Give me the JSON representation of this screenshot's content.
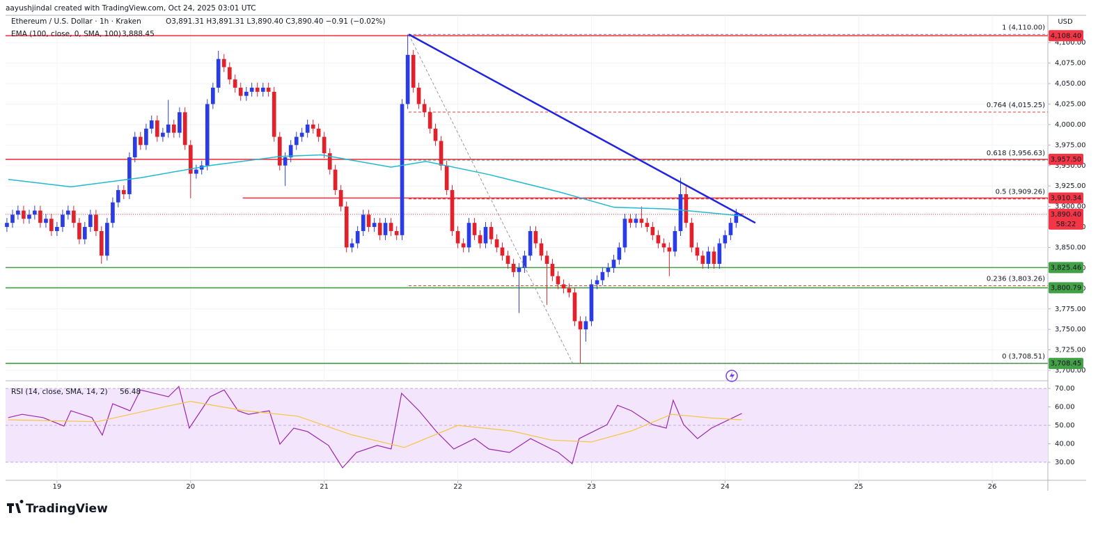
{
  "header": {
    "creator": "aayushjindal created with TradingView.com, Oct 24, 2025 03:01 UTC"
  },
  "footer": {
    "logo": "TradingView"
  },
  "chart_data": [
    {
      "type": "candlestick",
      "title": "Ethereum / U.S. Dollar · 1h · Kraken",
      "ohlc_text": "O3,891.31 H3,891.31 L3,890.40 C3,890.40 −0.91 (−0.02%)",
      "axis_label": "USD",
      "up_color": "#2a3ce6",
      "down_color": "#e3212b",
      "x": [
        18.625,
        18.667,
        18.708,
        18.75,
        18.792,
        18.833,
        18.875,
        18.917,
        18.958,
        19,
        19.042,
        19.083,
        19.125,
        19.167,
        19.208,
        19.25,
        19.292,
        19.333,
        19.375,
        19.417,
        19.458,
        19.5,
        19.542,
        19.583,
        19.625,
        19.667,
        19.708,
        19.75,
        19.792,
        19.833,
        19.875,
        19.917,
        19.958,
        20,
        20.042,
        20.083,
        20.125,
        20.167,
        20.208,
        20.25,
        20.292,
        20.333,
        20.375,
        20.417,
        20.458,
        20.5,
        20.542,
        20.583,
        20.625,
        20.667,
        20.708,
        20.75,
        20.792,
        20.833,
        20.875,
        20.917,
        20.958,
        21,
        21.042,
        21.083,
        21.125,
        21.167,
        21.208,
        21.25,
        21.292,
        21.333,
        21.375,
        21.417,
        21.458,
        21.5,
        21.542,
        21.583,
        21.625,
        21.667,
        21.708,
        21.75,
        21.792,
        21.833,
        21.875,
        21.917,
        21.958,
        22,
        22.042,
        22.083,
        22.125,
        22.167,
        22.208,
        22.25,
        22.292,
        22.333,
        22.375,
        22.417,
        22.458,
        22.5,
        22.542,
        22.583,
        22.625,
        22.667,
        22.708,
        22.75,
        22.792,
        22.833,
        22.875,
        22.917,
        22.958,
        23,
        23.042,
        23.083,
        23.125,
        23.167,
        23.208,
        23.25,
        23.292,
        23.333,
        23.375,
        23.417,
        23.458,
        23.5,
        23.542,
        23.583,
        23.625,
        23.667,
        23.708,
        23.75,
        23.792,
        23.833,
        23.875,
        23.917,
        23.958,
        24,
        24.042,
        24.083,
        24.125
      ],
      "open": [
        3875,
        3880,
        3890,
        3895,
        3885,
        3890,
        3895,
        3880,
        3885,
        3870,
        3875,
        3890,
        3895,
        3880,
        3860,
        3875,
        3890,
        3870,
        3840,
        3880,
        3905,
        3920,
        3915,
        3960,
        3985,
        3975,
        3995,
        4005,
        3985,
        3990,
        4000,
        3990,
        4015,
        3975,
        3940,
        3945,
        3950,
        4025,
        4045,
        4080,
        4070,
        4055,
        4045,
        4035,
        4040,
        4045,
        4040,
        4045,
        4040,
        3985,
        3950,
        3960,
        3975,
        3985,
        3990,
        4000,
        3995,
        3985,
        3965,
        3945,
        3920,
        3900,
        3850,
        3855,
        3870,
        3890,
        3875,
        3880,
        3865,
        3880,
        3870,
        3865,
        4025,
        4085,
        4045,
        4025,
        4015,
        3995,
        3980,
        3950,
        3920,
        3870,
        3855,
        3850,
        3880,
        3865,
        3855,
        3875,
        3860,
        3850,
        3840,
        3830,
        3820,
        3825,
        3840,
        3870,
        3855,
        3840,
        3830,
        3815,
        3805,
        3800,
        3795,
        3760,
        3750,
        3760,
        3805,
        3810,
        3820,
        3825,
        3835,
        3850,
        3885,
        3880,
        3885,
        3880,
        3875,
        3865,
        3855,
        3850,
        3845,
        3870,
        3915,
        3880,
        3850,
        3840,
        3830,
        3845,
        3830,
        3855,
        3865,
        3880,
        3891.31
      ],
      "high": [
        3886,
        3896,
        3901,
        3901,
        3896,
        3901,
        3901,
        3891,
        3891,
        3881,
        3896,
        3901,
        3901,
        3886,
        3881,
        3896,
        3896,
        3876,
        3886,
        3911,
        3926,
        3926,
        3966,
        3991,
        3991,
        4001,
        4011,
        4011,
        3996,
        4030,
        4006,
        4021,
        4021,
        3981,
        3951,
        3956,
        4031,
        4051,
        4090,
        4086,
        4076,
        4061,
        4051,
        4046,
        4051,
        4051,
        4051,
        4051,
        4046,
        3991,
        3966,
        3981,
        3991,
        3996,
        4006,
        4006,
        4001,
        3991,
        3971,
        3951,
        3926,
        3906,
        3861,
        3876,
        3896,
        3896,
        3886,
        3886,
        3886,
        3886,
        3876,
        4031,
        4110,
        4091,
        4051,
        4031,
        4021,
        4001,
        3986,
        3956,
        3926,
        3876,
        3861,
        3886,
        3886,
        3871,
        3881,
        3881,
        3866,
        3856,
        3846,
        3836,
        3831,
        3846,
        3876,
        3876,
        3861,
        3846,
        3836,
        3821,
        3811,
        3806,
        3801,
        3766,
        3766,
        3811,
        3816,
        3826,
        3831,
        3841,
        3856,
        3891,
        3891,
        3891,
        3900,
        3886,
        3881,
        3871,
        3861,
        3856,
        3876,
        3935,
        3925,
        3886,
        3856,
        3846,
        3851,
        3851,
        3861,
        3871,
        3886,
        3897,
        3891.31
      ],
      "low": [
        3869,
        3874,
        3884,
        3879,
        3879,
        3884,
        3874,
        3874,
        3864,
        3864,
        3869,
        3884,
        3874,
        3854,
        3854,
        3869,
        3864,
        3830,
        3834,
        3874,
        3899,
        3909,
        3909,
        3954,
        3969,
        3969,
        3989,
        3979,
        3979,
        3984,
        3984,
        3984,
        3969,
        3910,
        3934,
        3939,
        3944,
        4019,
        4039,
        4064,
        4049,
        4039,
        4029,
        4029,
        4034,
        4034,
        4034,
        4034,
        3979,
        3944,
        3925,
        3954,
        3969,
        3979,
        3984,
        3989,
        3979,
        3959,
        3939,
        3914,
        3894,
        3844,
        3844,
        3849,
        3864,
        3869,
        3869,
        3859,
        3859,
        3864,
        3859,
        3859,
        4019,
        4039,
        4019,
        4009,
        3989,
        3974,
        3944,
        3914,
        3864,
        3849,
        3844,
        3844,
        3859,
        3849,
        3849,
        3854,
        3844,
        3834,
        3824,
        3814,
        3770,
        3819,
        3834,
        3849,
        3834,
        3780,
        3809,
        3799,
        3794,
        3789,
        3754,
        3708.51,
        3735,
        3754,
        3799,
        3804,
        3814,
        3819,
        3829,
        3844,
        3874,
        3874,
        3874,
        3869,
        3859,
        3849,
        3844,
        3815,
        3839,
        3864,
        3874,
        3844,
        3834,
        3824,
        3824,
        3824,
        3824,
        3849,
        3859,
        3874,
        3890.4
      ],
      "close": [
        3880,
        3890,
        3895,
        3885,
        3890,
        3895,
        3880,
        3885,
        3870,
        3875,
        3890,
        3895,
        3880,
        3860,
        3875,
        3890,
        3870,
        3840,
        3880,
        3905,
        3920,
        3915,
        3960,
        3985,
        3975,
        3995,
        4005,
        3985,
        3990,
        4000,
        3990,
        4015,
        3975,
        3940,
        3945,
        3950,
        4025,
        4045,
        4080,
        4070,
        4055,
        4045,
        4035,
        4040,
        4045,
        4040,
        4045,
        4040,
        3985,
        3950,
        3960,
        3975,
        3985,
        3990,
        4000,
        3995,
        3985,
        3965,
        3945,
        3920,
        3900,
        3850,
        3855,
        3870,
        3890,
        3875,
        3880,
        3865,
        3880,
        3870,
        3865,
        4025,
        4085,
        4045,
        4025,
        4015,
        3995,
        3980,
        3950,
        3920,
        3870,
        3855,
        3850,
        3880,
        3865,
        3855,
        3875,
        3860,
        3850,
        3840,
        3830,
        3820,
        3825,
        3840,
        3870,
        3855,
        3840,
        3830,
        3815,
        3805,
        3800,
        3795,
        3760,
        3750,
        3760,
        3805,
        3810,
        3820,
        3825,
        3835,
        3850,
        3885,
        3880,
        3885,
        3880,
        3875,
        3865,
        3855,
        3850,
        3845,
        3870,
        3915,
        3880,
        3850,
        3840,
        3830,
        3845,
        3830,
        3855,
        3865,
        3880,
        3891.31,
        3890.4
      ],
      "last_price": {
        "value": 3890.4,
        "label": "3,890.40",
        "countdown": "58:22",
        "color": "#f23645"
      },
      "ema": {
        "name": "EMA (100, close, 0, SMA, 100)",
        "value_label": "3,888.45",
        "color": "#22b8cf",
        "x": [
          18.635,
          19.104,
          19.625,
          20.146,
          20.668,
          20.98,
          21.501,
          21.762,
          22.231,
          22.752,
          23.169,
          23.586,
          24.125
        ],
        "values": [
          3933,
          3924,
          3935,
          3950,
          3961,
          3963,
          3948,
          3955,
          3939,
          3918,
          3899,
          3897,
          3888.45
        ]
      },
      "levels": [
        {
          "value": 4108.4,
          "label": "4,108.40",
          "color": "#f23645"
        },
        {
          "value": 3957.5,
          "label": "3,957.50",
          "color": "#f23645"
        },
        {
          "value": 3910.34,
          "label": "3,910.34",
          "color": "#f23645",
          "from_x": 20.39
        },
        {
          "value": 3825.46,
          "label": "3,825.46",
          "color": "#43a047"
        },
        {
          "value": 3800.79,
          "label": "3,800.79",
          "color": "#43a047"
        },
        {
          "value": 3708.45,
          "label": "3,708.45",
          "color": "#43a047"
        }
      ],
      "fib_from_x": 21.632,
      "fib_levels": [
        {
          "value": 4110,
          "label": "1 (4,110.00)",
          "color": "#7a86c8"
        },
        {
          "value": 4015.25,
          "label": "0.764 (4,015.25)",
          "color": "#e53935"
        },
        {
          "value": 3956.63,
          "label": "0.618 (3,956.63)",
          "color": "#1e9e86"
        },
        {
          "value": 3909.26,
          "label": "0.5 (3,909.26)",
          "color": "#b71c1c"
        },
        {
          "value": 3803.26,
          "label": "0.236 (3,803.26)",
          "color": "#e53935"
        },
        {
          "value": 3708.51,
          "label": "0 (3,708.51)",
          "color": "#888888"
        }
      ],
      "trendline": {
        "color": "#1f24e0",
        "x": [
          21.632,
          24.227
        ],
        "values": [
          4110,
          3880
        ]
      },
      "fib_diagonal": {
        "color": "#999999",
        "x": [
          21.632,
          22.86
        ],
        "values": [
          4110,
          3708.51
        ]
      },
      "xlim": [
        18.615,
        26.416
      ],
      "xticks": [
        19,
        20,
        21,
        22,
        23,
        24,
        25,
        26
      ],
      "ylim": [
        3689,
        4118
      ],
      "yticks": [
        {
          "value": 3700,
          "label": "3,700.00"
        },
        {
          "value": 3725,
          "label": "3,725.00"
        },
        {
          "value": 3750,
          "label": "3,750.00"
        },
        {
          "value": 3775,
          "label": "3,775.00"
        },
        {
          "value": 3800,
          "label": "3,800.00"
        },
        {
          "value": 3825,
          "label": "3,825.00"
        },
        {
          "value": 3850,
          "label": "3,850.00"
        },
        {
          "value": 3875,
          "label": "3,875.00"
        },
        {
          "value": 3900,
          "label": "3,900.00"
        },
        {
          "value": 3925,
          "label": "3,925.00"
        },
        {
          "value": 3950,
          "label": "3,950.00"
        },
        {
          "value": 3975,
          "label": "3,975.00"
        },
        {
          "value": 4000,
          "label": "4,000.00"
        },
        {
          "value": 4025,
          "label": "4,025.00"
        },
        {
          "value": 4050,
          "label": "4,050.00"
        },
        {
          "value": 4075,
          "label": "4,075.00"
        },
        {
          "value": 4100,
          "label": "4,100.00"
        }
      ],
      "grid": true
    },
    {
      "type": "line",
      "title": "RSI (14, close, SMA, 14, 2)",
      "value_label": "56.48",
      "band": [
        30,
        70
      ],
      "band_color": "#f3e5fc",
      "midline": 50,
      "series": [
        {
          "color": "#9c27b0",
          "x": [
            18.635,
            18.739,
            18.896,
            19.052,
            19.104,
            19.261,
            19.339,
            19.417,
            19.547,
            19.625,
            19.834,
            19.912,
            19.99,
            20.146,
            20.251,
            20.355,
            20.433,
            20.589,
            20.668,
            20.772,
            20.876,
            21.032,
            21.137,
            21.241,
            21.397,
            21.501,
            21.579,
            21.71,
            21.84,
            21.97,
            22.127,
            22.231,
            22.387,
            22.544,
            22.752,
            22.856,
            22.908,
            23.117,
            23.195,
            23.299,
            23.456,
            23.56,
            23.612,
            23.69,
            23.794,
            23.898,
            24.125
          ],
          "values": [
            54.2,
            56.0,
            54.2,
            49.6,
            57.9,
            54.2,
            44.7,
            61.7,
            57.9,
            69.2,
            65.5,
            71.1,
            48.5,
            65.5,
            69.2,
            57.9,
            56.0,
            57.9,
            39.8,
            48.5,
            46.6,
            39.1,
            27.0,
            35.3,
            39.1,
            37.2,
            67.4,
            57.9,
            46.6,
            37.2,
            42.8,
            37.2,
            35.3,
            42.8,
            35.3,
            29.2,
            42.8,
            50.4,
            60.9,
            57.9,
            50.4,
            48.5,
            63.6,
            50.4,
            42.8,
            48.5,
            56.48
          ]
        },
        {
          "color": "#f5c542",
          "x": [
            18.635,
            19.3,
            19.8,
            20.0,
            20.4,
            20.8,
            21.2,
            21.6,
            22.0,
            22.4,
            22.7,
            23.0,
            23.3,
            23.6,
            23.9,
            24.125
          ],
          "values": [
            53,
            52,
            60,
            63,
            58,
            55,
            45,
            38,
            50,
            47,
            42,
            41,
            47,
            56,
            54,
            53
          ]
        }
      ],
      "xlim": [
        18.615,
        26.416
      ],
      "ylim": [
        20.2,
        73.8
      ],
      "yticks": [
        {
          "value": 30,
          "label": "30.00"
        },
        {
          "value": 40,
          "label": "40.00"
        },
        {
          "value": 50,
          "label": "50.00"
        },
        {
          "value": 60,
          "label": "60.00"
        },
        {
          "value": 70,
          "label": "70.00"
        }
      ]
    }
  ]
}
